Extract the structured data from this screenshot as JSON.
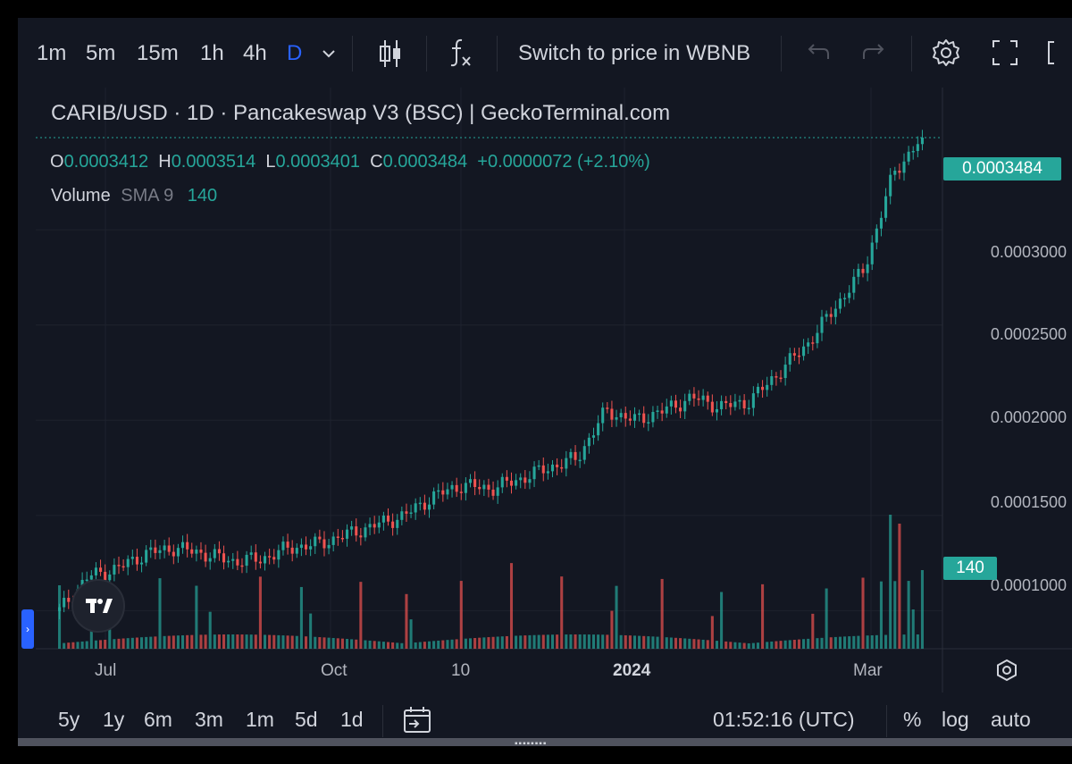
{
  "toolbar": {
    "intervals": [
      "1m",
      "5m",
      "15m",
      "1h",
      "4h",
      "D"
    ],
    "active_interval": "D",
    "switch_label": "Switch to price in WBNB",
    "icons": [
      "chevron-down-icon",
      "candlestick-icon",
      "indicators-fx-icon",
      "undo-icon",
      "redo-icon",
      "settings-gear-icon",
      "fullscreen-icon",
      "screenshot-icon"
    ]
  },
  "legend": {
    "title": "CARIB/USD · 1D · Pancakeswap V3 (BSC) | GeckoTerminal.com",
    "o_key": "O",
    "o_val": "0.0003412",
    "h_key": "H",
    "h_val": "0.0003514",
    "l_key": "L",
    "l_val": "0.0003401",
    "c_key": "C",
    "c_val": "0.0003484",
    "change": "+0.0000072 (+2.10%)",
    "volume_label": "Volume",
    "sma_label": "SMA 9",
    "volume_value": "140"
  },
  "price_axis": {
    "labels": [
      "0.0003000",
      "0.0002500",
      "0.0002000",
      "0.0001500",
      "0.0001000"
    ],
    "current_price": "0.0003484",
    "current_volume": "140"
  },
  "time_axis": {
    "labels": [
      "Jul",
      "Oct",
      "10",
      "2024",
      "Mar"
    ]
  },
  "bottom": {
    "ranges": [
      "5y",
      "1y",
      "6m",
      "3m",
      "1m",
      "5d",
      "1d"
    ],
    "clock": "01:52:16 (UTC)",
    "percent": "%",
    "log": "log",
    "auto": "auto"
  },
  "colors": {
    "up": "#26a69a",
    "down": "#ef5350",
    "background": "#131722",
    "grid": "#1e222d",
    "accent": "#2962ff"
  },
  "chart_data": {
    "type": "candlestick",
    "pair": "CARIB/USD",
    "ylim": [
      8e-05,
      0.00037
    ],
    "anchors": [
      {
        "x": "Jun",
        "close": 0.0001
      },
      {
        "x": "Jun",
        "close": 0.000118
      },
      {
        "x": "Jul",
        "close": 0.000122
      },
      {
        "x": "Jul",
        "close": 0.00013
      },
      {
        "x": "Jul",
        "close": 0.000133
      },
      {
        "x": "Aug",
        "close": 0.00013
      },
      {
        "x": "Aug",
        "close": 0.000126
      },
      {
        "x": "Aug",
        "close": 0.000127
      },
      {
        "x": "Sep",
        "close": 0.000133
      },
      {
        "x": "Sep",
        "close": 0.000135
      },
      {
        "x": "Oct",
        "close": 0.00014
      },
      {
        "x": "Oct",
        "close": 0.000145
      },
      {
        "x": "Oct",
        "close": 0.00015
      },
      {
        "x": "Nov",
        "close": 0.00016
      },
      {
        "x": "Nov",
        "close": 0.000166
      },
      {
        "x": "Nov",
        "close": 0.000164
      },
      {
        "x": "Nov",
        "close": 0.000169
      },
      {
        "x": "Dec",
        "close": 0.000175
      },
      {
        "x": "Dec",
        "close": 0.00018
      },
      {
        "x": "Dec",
        "close": 0.000205
      },
      {
        "x": "Jan",
        "close": 0.0002
      },
      {
        "x": "Jan",
        "close": 0.000205
      },
      {
        "x": "Jan",
        "close": 0.000212
      },
      {
        "x": "Jan",
        "close": 0.000207
      },
      {
        "x": "Feb",
        "close": 0.00021
      },
      {
        "x": "Feb",
        "close": 0.000225
      },
      {
        "x": "Feb",
        "close": 0.00024
      },
      {
        "x": "Feb",
        "close": 0.00026
      },
      {
        "x": "Mar",
        "close": 0.00028
      },
      {
        "x": "Mar",
        "close": 0.00033
      },
      {
        "x": "Mar",
        "close": 0.0003484
      }
    ],
    "volume_peaks": [
      140
    ]
  }
}
